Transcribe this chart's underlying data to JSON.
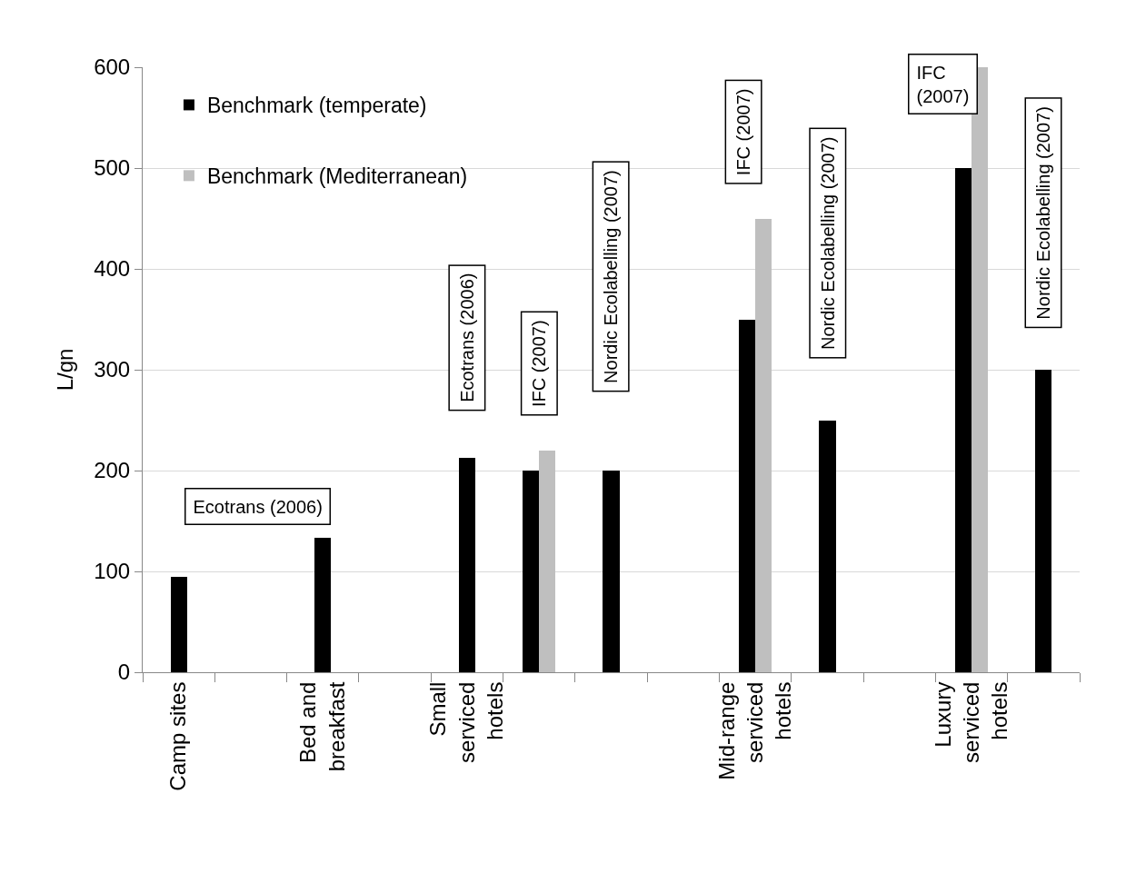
{
  "chart_data": {
    "type": "bar",
    "ylabel": "L/gn",
    "categories": [
      "Camp sites",
      null,
      "Bed and breakfast",
      null,
      "Small serviced hotels",
      null,
      null,
      null,
      "Mid-range serviced hotels",
      null,
      null,
      "Luxury serviced hotels",
      null
    ],
    "series": [
      {
        "name": "Benchmark (temperate)",
        "color": "#000000",
        "values": [
          95,
          null,
          133,
          null,
          213,
          200,
          200,
          null,
          350,
          250,
          null,
          500,
          300
        ]
      },
      {
        "name": "Benchmark (Mediterranean)",
        "color": "#bfbfbf",
        "values": [
          null,
          null,
          null,
          null,
          null,
          220,
          null,
          null,
          450,
          null,
          null,
          600,
          null
        ]
      }
    ],
    "ylim": [
      0,
      600
    ],
    "yticks": [
      0,
      100,
      200,
      300,
      400,
      500,
      600
    ],
    "grid": "y",
    "legend": "top left",
    "annotations": [
      "Ecotrans (2006)",
      "Ecotrans (2006)",
      "IFC (2007)",
      "Nordic Ecolabelling (2007)",
      "IFC (2007)",
      "Nordic Ecolabelling (2007)",
      "IFC (2007)",
      "Nordic Ecolabelling (2007)"
    ]
  }
}
